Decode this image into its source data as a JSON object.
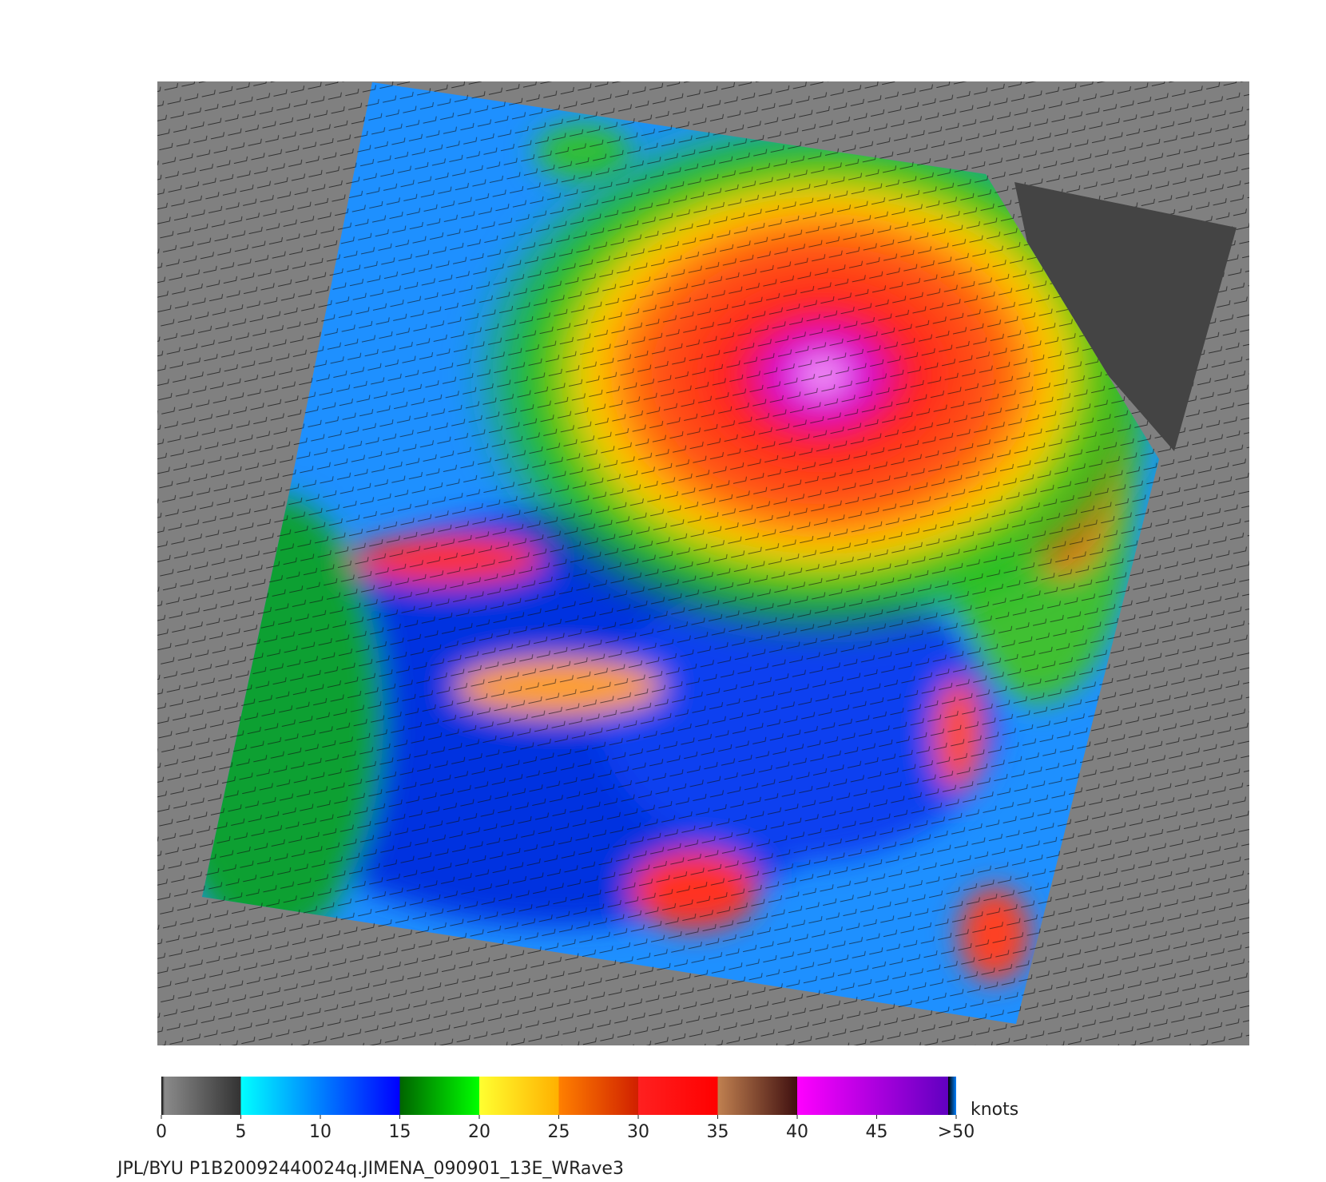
{
  "colorbar": {
    "lim": [
      0,
      50
    ],
    "ticks": [
      0,
      5,
      10,
      15,
      20,
      25,
      30,
      35,
      40,
      45,
      {
        "value": 50,
        "label": ">50"
      }
    ],
    "unit": "knots"
  },
  "caption": "JPL/BYU  P1B20092440024q.JIMENA_090901_13E_WRave3"
}
